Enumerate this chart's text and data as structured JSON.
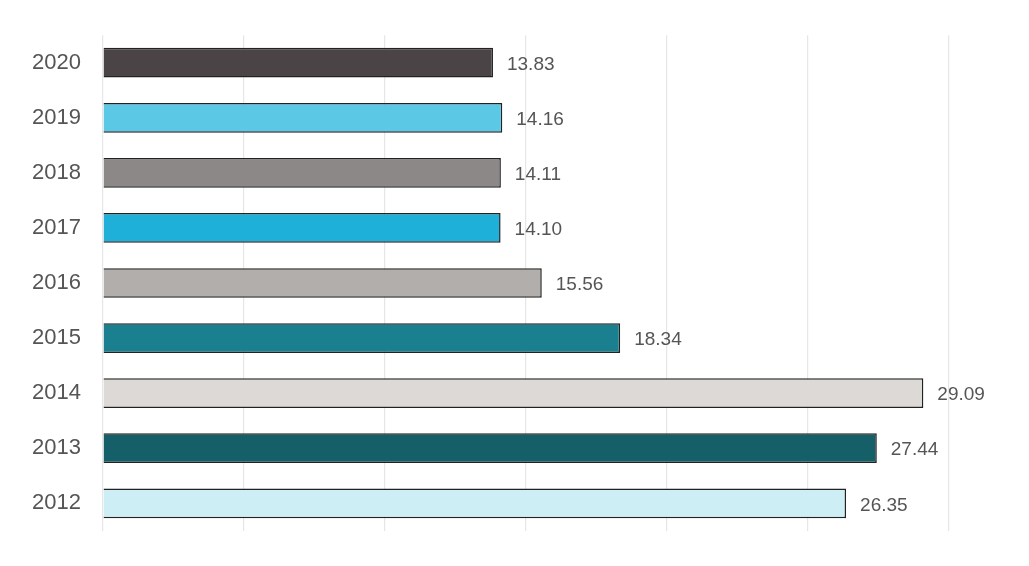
{
  "chart_data": {
    "type": "bar",
    "orientation": "horizontal",
    "categories": [
      "2020",
      "2019",
      "2018",
      "2017",
      "2016",
      "2015",
      "2014",
      "2013",
      "2012"
    ],
    "values": [
      13.83,
      14.16,
      14.11,
      14.1,
      15.56,
      18.34,
      29.09,
      27.44,
      26.35
    ],
    "colors": [
      "#4a4446",
      "#5bc8e6",
      "#8c8887",
      "#1eb0d8",
      "#b1aeac",
      "#1a7f8e",
      "#dcd9d7",
      "#155f68",
      "#cdeef4"
    ],
    "value_labels": [
      "13.83",
      "14.16",
      "14.11",
      "14.10",
      "15.56",
      "18.34",
      "29.09",
      "27.44",
      "26.35"
    ],
    "xticks": [
      {
        "value": 0,
        "label": null
      },
      {
        "value": 5,
        "label": null
      },
      {
        "value": 10,
        "label": null
      },
      {
        "value": 15,
        "label": null
      },
      {
        "value": 20,
        "label": null
      },
      {
        "value": 25,
        "label": null
      },
      {
        "value": 30,
        "label": null
      }
    ],
    "grid": "x",
    "tick_labels": "y",
    "legend": false
  }
}
